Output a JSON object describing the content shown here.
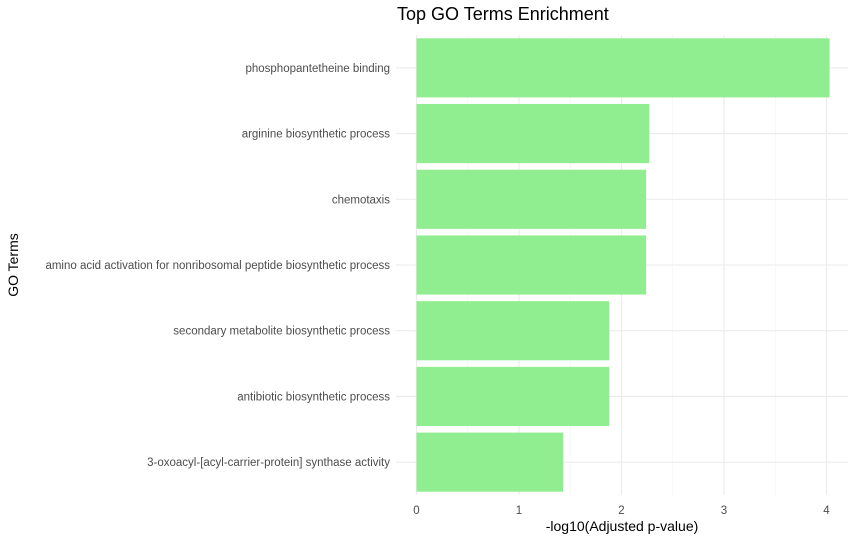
{
  "chart_data": {
    "type": "bar",
    "orientation": "horizontal",
    "title": "Top GO Terms Enrichment",
    "xlabel": "-log10(Adjusted p-value)",
    "ylabel": "GO Terms",
    "xlim": [
      0,
      4.2
    ],
    "xticks": [
      0,
      1,
      2,
      3,
      4
    ],
    "grid": true,
    "bar_color": "#90EE90",
    "categories": [
      "phosphopantetheine binding",
      "arginine biosynthetic process",
      "chemotaxis",
      "amino acid activation for nonribosomal peptide biosynthetic process",
      "secondary metabolite biosynthetic process",
      "antibiotic biosynthetic process",
      "3-oxoacyl-[acyl-carrier-protein] synthase activity"
    ],
    "values": [
      4.03,
      2.27,
      2.24,
      2.24,
      1.88,
      1.88,
      1.43
    ]
  }
}
